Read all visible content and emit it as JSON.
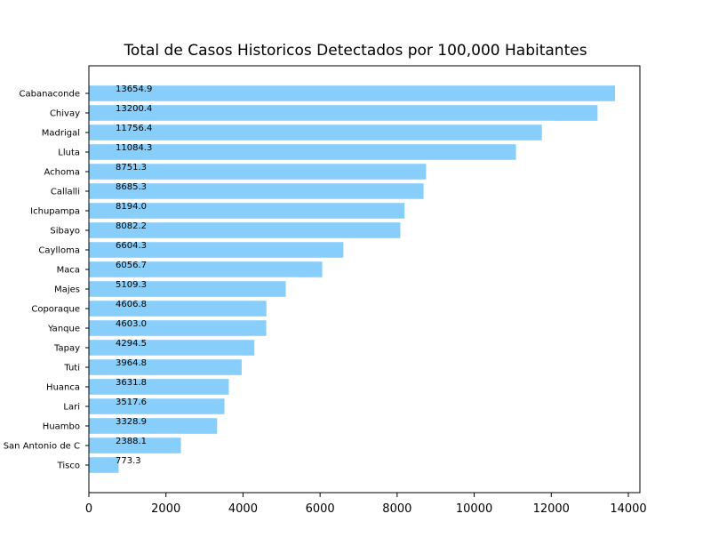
{
  "chart_data": {
    "type": "bar",
    "orientation": "horizontal",
    "title": "Total de Casos Historicos Detectados por 100,000 Habitantes",
    "xlabel": "",
    "ylabel": "",
    "xlim": [
      0,
      14300
    ],
    "xticks": [
      0,
      2000,
      4000,
      6000,
      8000,
      10000,
      12000,
      14000
    ],
    "grid": false,
    "bar_color": "#87cefa",
    "categories": [
      "Cabanaconde",
      "Chivay",
      "Madrigal",
      "Lluta",
      "Achoma",
      "Callalli",
      "Ichupampa",
      "Sibayo",
      "Caylloma",
      "Maca",
      "Majes",
      "Coporaque",
      "Yanque",
      "Tapay",
      "Tuti",
      "Huanca",
      "Lari",
      "Huambo",
      "San Antonio de C",
      "Tisco"
    ],
    "values": [
      13654.9,
      13200.4,
      11756.4,
      11084.3,
      8751.3,
      8685.3,
      8194.0,
      8082.2,
      6604.3,
      6056.7,
      5109.3,
      4606.8,
      4603.0,
      4294.5,
      3964.8,
      3631.8,
      3517.6,
      3328.9,
      2388.1,
      773.3
    ],
    "data_labels": [
      "13654.9",
      "13200.4",
      "11756.4",
      "11084.3",
      "8751.3",
      "8685.3",
      "8194.0",
      "8082.2",
      "6604.3",
      "6056.7",
      "5109.3",
      "4606.8",
      "4603.0",
      "4294.5",
      "3964.8",
      "3631.8",
      "3517.6",
      "3328.9",
      "2388.1",
      "773.3"
    ]
  }
}
